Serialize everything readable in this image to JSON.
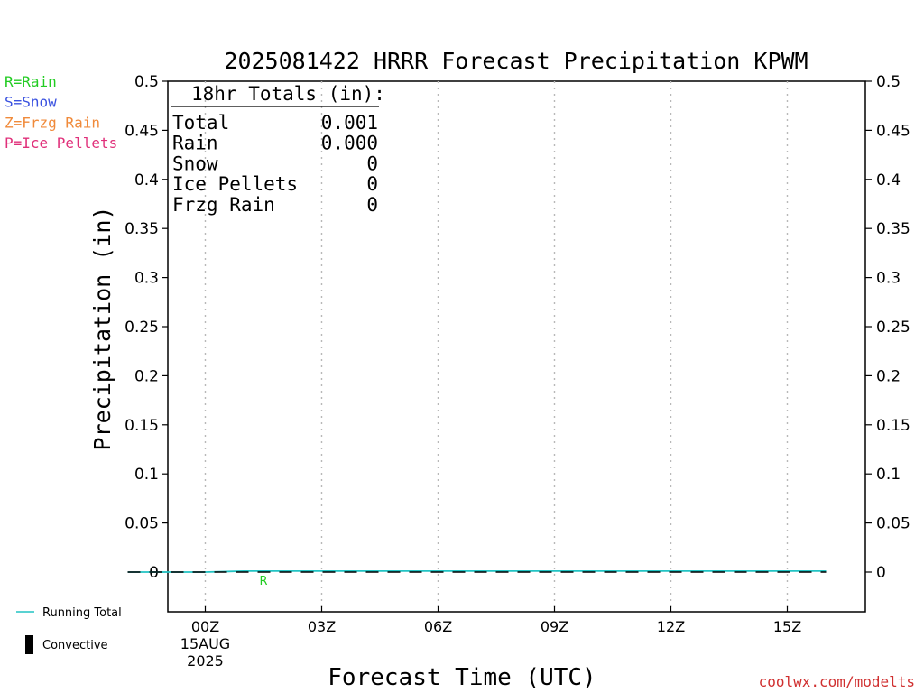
{
  "chart_data": {
    "type": "line",
    "title": "2025081422 HRRR Forecast Precipitation KPWM",
    "xlabel": "Forecast Time (UTC)",
    "ylabel": "Precipitation (in)",
    "ylim": [
      0,
      0.5
    ],
    "y_ticks": [
      0,
      0.05,
      0.1,
      0.15,
      0.2,
      0.25,
      0.3,
      0.35,
      0.4,
      0.45,
      0.5
    ],
    "x_ticks": [
      {
        "hour": 2,
        "label": "00Z",
        "sublabel": "15AUG",
        "year": "2025"
      },
      {
        "hour": 5,
        "label": "03Z"
      },
      {
        "hour": 8,
        "label": "06Z"
      },
      {
        "hour": 11,
        "label": "09Z"
      },
      {
        "hour": 14,
        "label": "12Z"
      },
      {
        "hour": 17,
        "label": "15Z"
      }
    ],
    "grid_vertical": true,
    "series": [
      {
        "name": "Running Total",
        "color": "#22c4c4",
        "x": [
          0,
          1,
          2,
          3,
          4,
          5,
          6,
          7,
          8,
          9,
          10,
          11,
          12,
          13,
          14,
          15,
          16,
          17,
          18
        ],
        "values": [
          0,
          0,
          0,
          0.001,
          0.001,
          0.001,
          0.001,
          0.001,
          0.001,
          0.001,
          0.001,
          0.001,
          0.001,
          0.001,
          0.001,
          0.001,
          0.001,
          0.001,
          0.001
        ]
      },
      {
        "name": "Convective",
        "color": "#000000",
        "x": [
          0,
          1,
          2,
          3,
          4,
          5,
          6,
          7,
          8,
          9,
          10,
          11,
          12,
          13,
          14,
          15,
          16,
          17,
          18
        ],
        "values": [
          0,
          0,
          0,
          0,
          0,
          0,
          0,
          0,
          0,
          0,
          0,
          0,
          0,
          0,
          0,
          0,
          0,
          0,
          0
        ]
      }
    ],
    "ptype_markers": [
      {
        "hour": 3.5,
        "code": "R",
        "color": "#22cc22"
      }
    ],
    "ptype_legend": [
      {
        "text": "R=Rain",
        "color": "#22cc22"
      },
      {
        "text": "S=Snow",
        "color": "#3a52e0"
      },
      {
        "text": "Z=Frzg Rain",
        "color": "#f08a3a"
      },
      {
        "text": "P=Ice Pellets",
        "color": "#e0307a"
      }
    ],
    "line_legend": [
      {
        "text": "Running Total",
        "color": "#22c4c4",
        "kind": "line"
      },
      {
        "text": "Convective",
        "color": "#000000",
        "kind": "bar"
      }
    ],
    "totals": {
      "header": "18hr Totals (in):",
      "rows": [
        {
          "label": "Total",
          "value": "0.001"
        },
        {
          "label": "Rain",
          "value": "0.000"
        },
        {
          "label": "Snow",
          "value": "0"
        },
        {
          "label": "Ice Pellets",
          "value": "0"
        },
        {
          "label": "Frzg Rain",
          "value": "0"
        }
      ]
    },
    "credit": "coolwx.com/modelts"
  }
}
